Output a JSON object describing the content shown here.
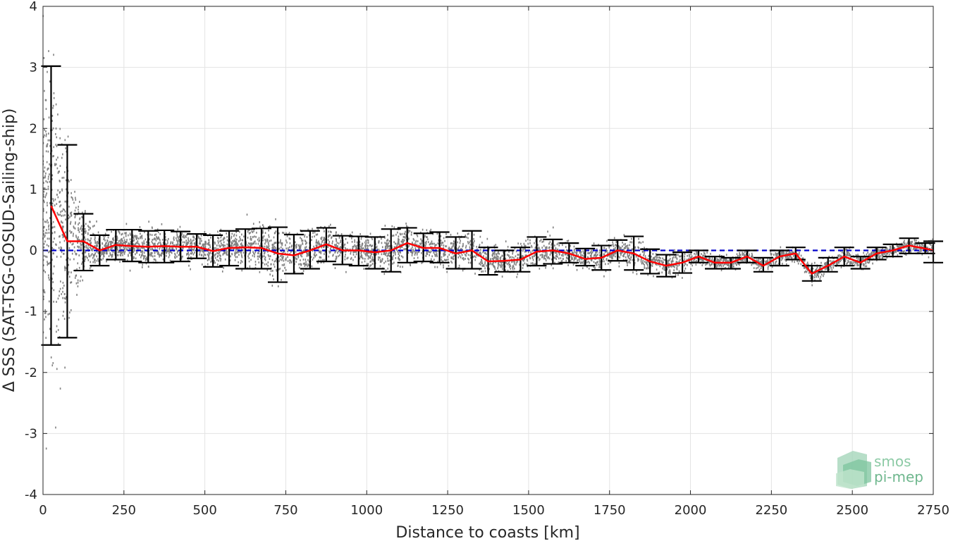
{
  "chart_data": {
    "type": "scatter",
    "title": "",
    "xlabel": "Distance to coasts [km]",
    "ylabel": "Δ SSS (SAT-TSG-GOSUD-Sailing-ship)",
    "xlim": [
      0,
      2750
    ],
    "ylim": [
      -4,
      4
    ],
    "xticks": [
      "0",
      "250",
      "500",
      "750",
      "1000",
      "1250",
      "1500",
      "1750",
      "2000",
      "2250",
      "2500",
      "2750"
    ],
    "yticks": [
      "-4",
      "-3",
      "-2",
      "-1",
      "0",
      "1",
      "2",
      "3",
      "4"
    ],
    "grid": true,
    "zero_line": {
      "y": 0,
      "style": "dashed",
      "color": "#0000cc"
    },
    "colors": {
      "scatter": "#808080",
      "mean_line": "#ff0000",
      "error_bars": "#000000",
      "zero_line": "#0000cc"
    },
    "mean_series": {
      "x": [
        25,
        75,
        125,
        175,
        225,
        275,
        325,
        375,
        425,
        475,
        525,
        575,
        625,
        675,
        725,
        775,
        825,
        875,
        925,
        975,
        1025,
        1075,
        1125,
        1175,
        1225,
        1275,
        1325,
        1375,
        1425,
        1475,
        1525,
        1575,
        1625,
        1675,
        1725,
        1775,
        1825,
        1875,
        1925,
        1975,
        2025,
        2075,
        2125,
        2175,
        2225,
        2275,
        2325,
        2375,
        2425,
        2475,
        2525,
        2575,
        2625,
        2675,
        2725,
        2750
      ],
      "mean": [
        0.73,
        0.15,
        0.15,
        0.0,
        0.09,
        0.07,
        0.06,
        0.07,
        0.06,
        0.06,
        -0.01,
        0.04,
        0.05,
        0.04,
        -0.05,
        -0.08,
        0.0,
        0.1,
        0.0,
        0.0,
        -0.03,
        0.0,
        0.12,
        0.04,
        0.04,
        -0.05,
        0.0,
        -0.18,
        -0.17,
        -0.15,
        -0.02,
        0.0,
        -0.05,
        -0.14,
        -0.12,
        0.0,
        -0.05,
        -0.18,
        -0.25,
        -0.2,
        -0.1,
        -0.2,
        -0.2,
        -0.1,
        -0.25,
        -0.1,
        -0.05,
        -0.38,
        -0.25,
        -0.1,
        -0.2,
        -0.05,
        0.0,
        0.08,
        0.03,
        0.0
      ],
      "lower": [
        -1.55,
        -1.43,
        -0.33,
        -0.25,
        -0.15,
        -0.18,
        -0.2,
        -0.2,
        -0.18,
        -0.13,
        -0.27,
        -0.25,
        -0.3,
        -0.3,
        -0.52,
        -0.38,
        -0.3,
        -0.18,
        -0.23,
        -0.25,
        -0.3,
        -0.35,
        -0.2,
        -0.18,
        -0.2,
        -0.3,
        -0.3,
        -0.4,
        -0.35,
        -0.35,
        -0.25,
        -0.22,
        -0.2,
        -0.25,
        -0.32,
        -0.17,
        -0.32,
        -0.38,
        -0.43,
        -0.37,
        -0.2,
        -0.3,
        -0.3,
        -0.2,
        -0.35,
        -0.25,
        -0.15,
        -0.5,
        -0.35,
        -0.25,
        -0.3,
        -0.15,
        -0.1,
        -0.05,
        -0.05,
        -0.2
      ],
      "upper": [
        3.02,
        1.73,
        0.6,
        0.25,
        0.34,
        0.34,
        0.32,
        0.33,
        0.31,
        0.27,
        0.25,
        0.32,
        0.35,
        0.36,
        0.38,
        0.26,
        0.32,
        0.37,
        0.24,
        0.23,
        0.22,
        0.35,
        0.37,
        0.28,
        0.3,
        0.22,
        0.32,
        0.05,
        0.0,
        0.05,
        0.22,
        0.18,
        0.12,
        0.03,
        0.08,
        0.17,
        0.23,
        0.02,
        -0.07,
        -0.03,
        0.0,
        -0.1,
        -0.12,
        0.0,
        -0.12,
        0.0,
        0.05,
        -0.25,
        -0.12,
        0.05,
        -0.1,
        0.05,
        0.1,
        0.2,
        0.12,
        0.15
      ]
    }
  },
  "logo": {
    "line1": "smos",
    "line2": "pi-mep"
  }
}
